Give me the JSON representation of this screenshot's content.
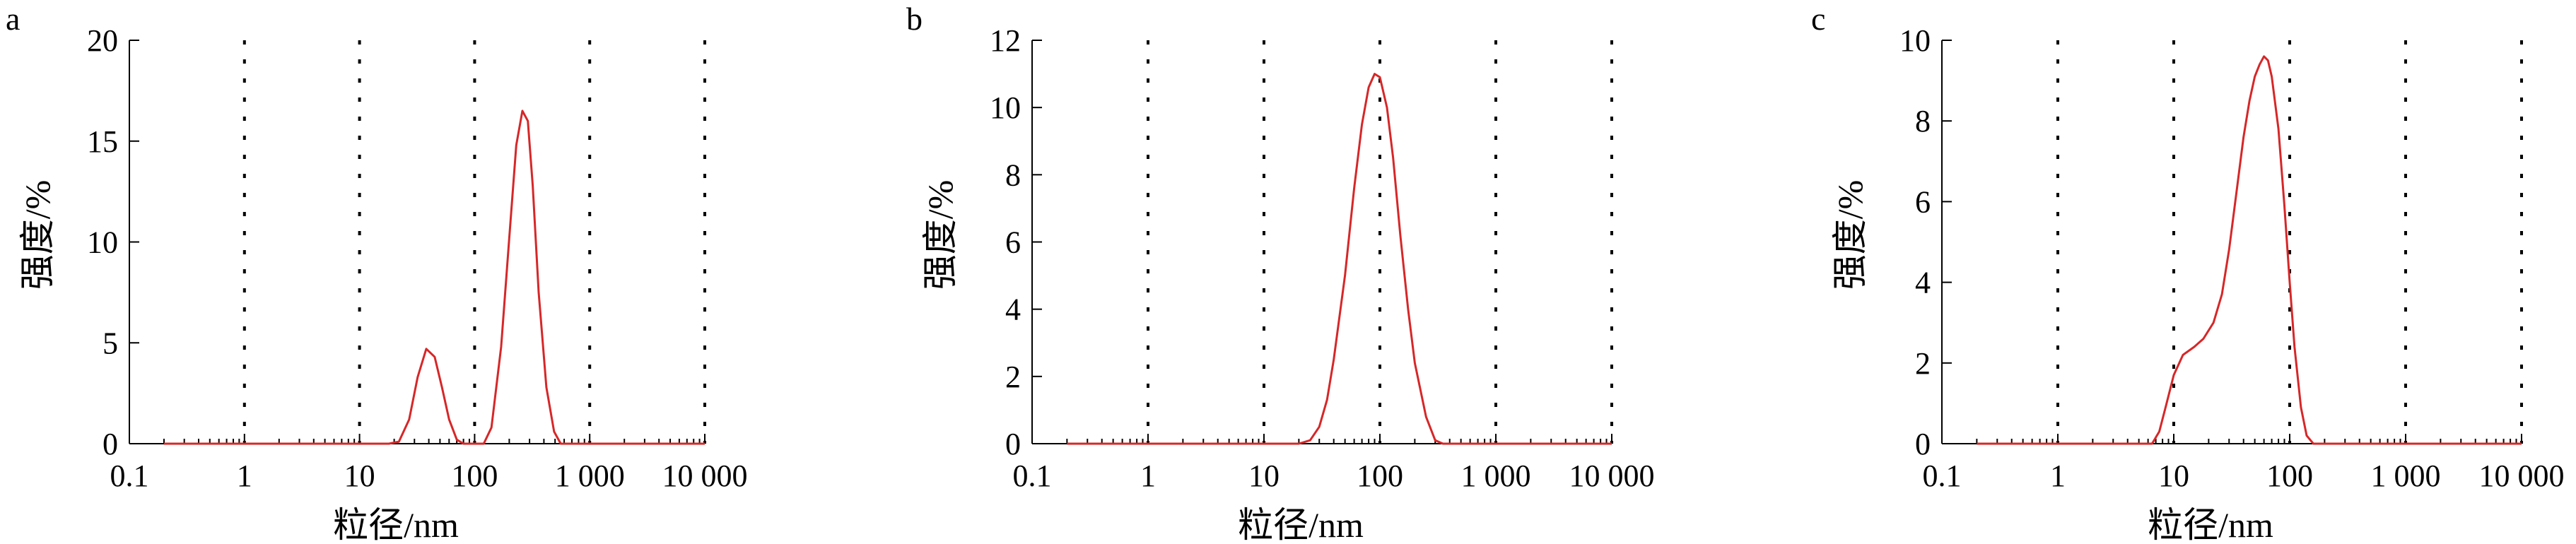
{
  "chart_data": [
    {
      "type": "line",
      "panel_label": "a",
      "xlabel": "粒径/nm",
      "ylabel": "强度/%",
      "xscale": "log",
      "xlim": [
        0.1,
        10000
      ],
      "ylim": [
        0,
        20
      ],
      "x_ticks": [
        0.1,
        1,
        10,
        100,
        1000,
        10000
      ],
      "x_tick_labels": [
        "0.1",
        "1",
        "10",
        "100",
        "1 000",
        "10 000"
      ],
      "y_ticks": [
        0,
        5,
        10,
        15,
        20
      ],
      "y_tick_labels": [
        "0",
        "5",
        "10",
        "15",
        "20"
      ],
      "grid": "vertical dotted at x ticks",
      "color": "#d62728",
      "series": [
        {
          "x": [
            0.2,
            1,
            10,
            18,
            22,
            27,
            32,
            38,
            45,
            52,
            60,
            70,
            80,
            100,
            120,
            140,
            170,
            200,
            230,
            260,
            290,
            320,
            360,
            420,
            490,
            560,
            600,
            1000,
            5000,
            10000
          ],
          "y": [
            0,
            0,
            0,
            0,
            0.1,
            1.2,
            3.3,
            4.7,
            4.3,
            2.8,
            1.2,
            0.2,
            0,
            0,
            0,
            0.8,
            4.8,
            10.2,
            14.8,
            16.5,
            16,
            12.8,
            7.5,
            2.8,
            0.6,
            0,
            0,
            0,
            0,
            0
          ]
        }
      ]
    },
    {
      "type": "line",
      "panel_label": "b",
      "xlabel": "粒径/nm",
      "ylabel": "强度/%",
      "xscale": "log",
      "xlim": [
        0.1,
        10000
      ],
      "ylim": [
        0,
        12
      ],
      "x_ticks": [
        0.1,
        1,
        10,
        100,
        1000,
        10000
      ],
      "x_tick_labels": [
        "0.1",
        "1",
        "10",
        "100",
        "1 000",
        "10 000"
      ],
      "y_ticks": [
        0,
        2,
        4,
        6,
        8,
        10,
        12
      ],
      "y_tick_labels": [
        "0",
        "2",
        "4",
        "6",
        "8",
        "10",
        "12"
      ],
      "grid": "vertical dotted at x ticks",
      "color": "#d62728",
      "series": [
        {
          "x": [
            0.2,
            1,
            10,
            20,
            25,
            30,
            35,
            40,
            50,
            60,
            70,
            80,
            90,
            100,
            115,
            130,
            150,
            175,
            200,
            250,
            300,
            350,
            1000,
            10000
          ],
          "y": [
            0,
            0,
            0,
            0,
            0.1,
            0.5,
            1.3,
            2.5,
            5.0,
            7.6,
            9.5,
            10.6,
            11.0,
            10.9,
            10.0,
            8.5,
            6.2,
            4.0,
            2.4,
            0.8,
            0.1,
            0,
            0,
            0
          ]
        }
      ]
    },
    {
      "type": "line",
      "panel_label": "c",
      "xlabel": "粒径/nm",
      "ylabel": "强度/%",
      "xscale": "log",
      "xlim": [
        0.1,
        10000
      ],
      "ylim": [
        0,
        10
      ],
      "x_ticks": [
        0.1,
        1,
        10,
        100,
        1000,
        10000
      ],
      "x_tick_labels": [
        "0.1",
        "1",
        "10",
        "100",
        "1 000",
        "10 000"
      ],
      "y_ticks": [
        0,
        2,
        4,
        6,
        8,
        10
      ],
      "y_tick_labels": [
        "0",
        "2",
        "4",
        "6",
        "8",
        "10"
      ],
      "grid": "vertical dotted at x ticks",
      "color": "#d62728",
      "series": [
        {
          "x": [
            0.2,
            1,
            5,
            6.5,
            7.5,
            8.5,
            10,
            12,
            15,
            18,
            22,
            26,
            30,
            35,
            40,
            45,
            50,
            55,
            60,
            65,
            70,
            80,
            90,
            100,
            110,
            125,
            140,
            160,
            180,
            1000,
            10000
          ],
          "y": [
            0,
            0,
            0,
            0,
            0.3,
            0.9,
            1.7,
            2.2,
            2.4,
            2.6,
            3.0,
            3.7,
            4.8,
            6.3,
            7.6,
            8.5,
            9.1,
            9.4,
            9.6,
            9.5,
            9.1,
            7.8,
            5.9,
            4.0,
            2.4,
            0.9,
            0.2,
            0,
            0,
            0,
            0
          ]
        }
      ]
    }
  ]
}
